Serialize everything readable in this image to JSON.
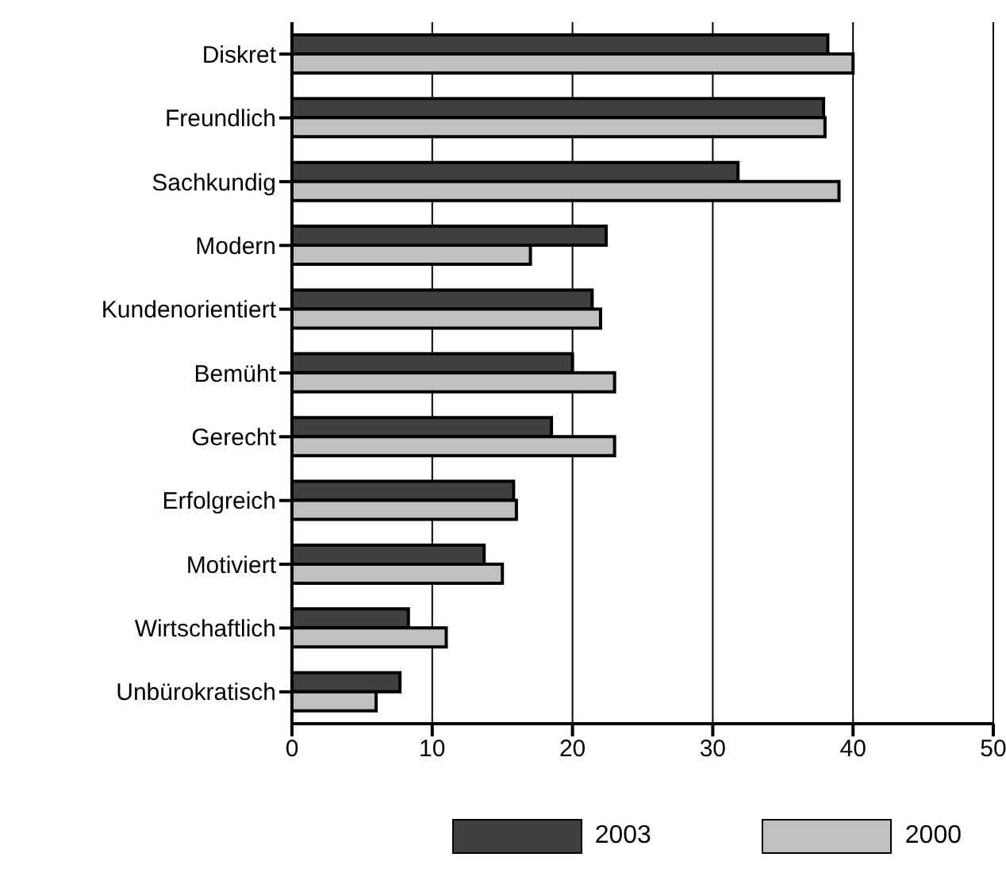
{
  "chart_data": {
    "type": "bar",
    "orientation": "horizontal",
    "categories": [
      "Diskret",
      "Freundlich",
      "Sachkundig",
      "Modern",
      "Kundenorientiert",
      "Bemüht",
      "Gerecht",
      "Erfolgreich",
      "Motiviert",
      "Wirtschaftlich",
      "Unbürokratisch"
    ],
    "series": [
      {
        "name": "2003",
        "color": "#404040",
        "values": [
          38.2,
          37.9,
          31.8,
          22.4,
          21.4,
          20.0,
          18.5,
          15.8,
          13.7,
          8.3,
          7.7
        ]
      },
      {
        "name": "2000",
        "color": "#c0c0c0",
        "values": [
          40.0,
          38.0,
          39.0,
          17.0,
          22.0,
          23.0,
          23.0,
          16.0,
          15.0,
          11.0,
          6.0
        ]
      }
    ],
    "xlim": [
      0,
      50
    ],
    "xticks": [
      0,
      10,
      20,
      30,
      40,
      50
    ],
    "grid": "x",
    "legend": "bottom right"
  }
}
